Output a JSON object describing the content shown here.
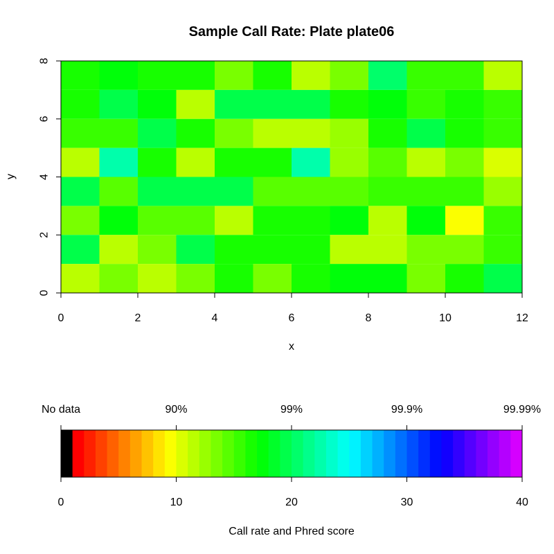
{
  "chart_data": [
    {
      "type": "heatmap",
      "title": "Sample Call Rate:  Plate plate06",
      "xlabel": "x",
      "ylabel": "y",
      "xlim": [
        0,
        12
      ],
      "ylim": [
        0,
        8
      ],
      "x_ticks": [
        "0",
        "2",
        "4",
        "6",
        "8",
        "10",
        "12"
      ],
      "y_ticks": [
        "0",
        "2",
        "4",
        "6",
        "8"
      ],
      "grid": false,
      "rows_top_to_bottom_y": [
        7,
        6,
        5,
        4,
        3,
        2,
        1,
        0
      ],
      "values": [
        [
          16,
          17,
          16,
          16,
          13,
          16,
          11,
          13,
          20,
          15,
          15,
          11
        ],
        [
          16,
          19,
          17,
          11,
          19,
          19,
          19,
          16,
          17,
          15,
          16,
          15
        ],
        [
          15,
          15,
          19,
          16,
          13,
          11,
          11,
          12,
          16,
          19,
          16,
          15
        ],
        [
          11,
          22,
          16,
          11,
          16,
          16,
          22,
          12,
          14,
          11,
          13,
          10
        ],
        [
          19,
          14,
          19,
          19,
          19,
          14,
          14,
          14,
          15,
          15,
          15,
          12
        ],
        [
          13,
          17,
          14,
          14,
          11,
          16,
          16,
          17,
          11,
          17,
          9,
          15
        ],
        [
          19,
          11,
          13,
          19,
          16,
          16,
          16,
          11,
          11,
          13,
          13,
          15
        ],
        [
          11,
          13,
          11,
          13,
          16,
          13,
          16,
          17,
          17,
          13,
          16,
          19
        ]
      ]
    },
    {
      "type": "heatmap",
      "title": "",
      "xlabel": "Call rate and Phred score",
      "xlim": [
        0,
        40
      ],
      "x_ticks": [
        "0",
        "10",
        "20",
        "30",
        "40"
      ],
      "top_labels": [
        "No data",
        "90%",
        "99%",
        "99.9%",
        "99.99%"
      ],
      "top_label_values": [
        0,
        10,
        20,
        30,
        40
      ],
      "no_data_color": "#000000",
      "bins": 40,
      "hue_start_deg": 0,
      "hue_end_deg": 290
    }
  ]
}
